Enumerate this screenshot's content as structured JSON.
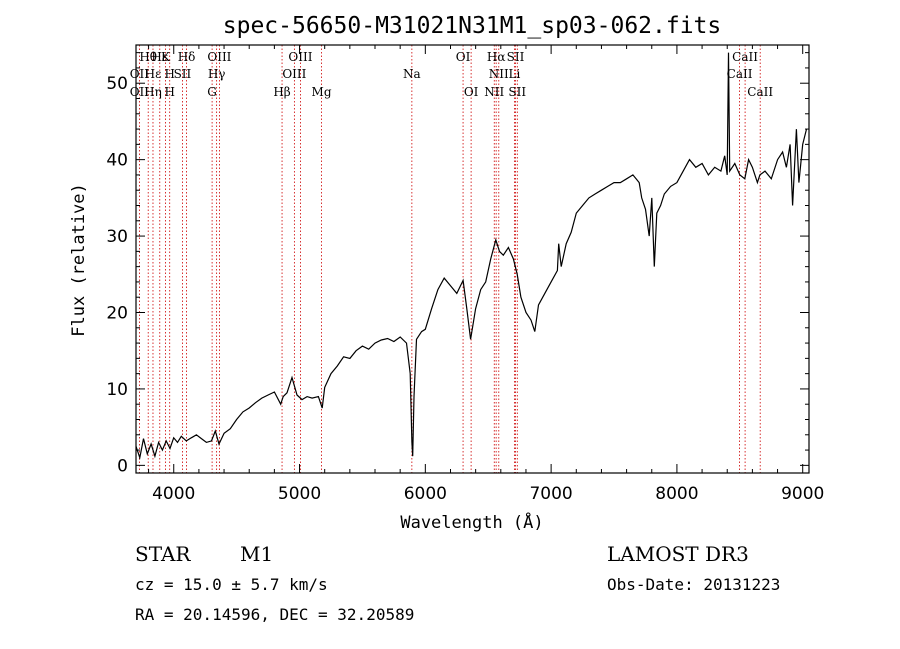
{
  "chart_data": {
    "type": "line",
    "title": "spec-56650-M31021N31M1_sp03-062.fits",
    "xlabel": "Wavelength (Å)",
    "ylabel": "Flux (relative)",
    "xlim": [
      3700,
      9050
    ],
    "ylim": [
      -1,
      55
    ],
    "xticks": [
      4000,
      5000,
      6000,
      7000,
      8000,
      9000
    ],
    "yticks": [
      0,
      10,
      20,
      30,
      40,
      50
    ],
    "line_color": "#000000",
    "marker_color": "#cc0000",
    "spectrum": [
      [
        3700,
        2.5
      ],
      [
        3730,
        1.0
      ],
      [
        3760,
        3.5
      ],
      [
        3790,
        1.5
      ],
      [
        3820,
        2.8
      ],
      [
        3850,
        1.2
      ],
      [
        3880,
        3.0
      ],
      [
        3910,
        2.0
      ],
      [
        3940,
        3.2
      ],
      [
        3970,
        2.2
      ],
      [
        4000,
        3.6
      ],
      [
        4030,
        3.0
      ],
      [
        4060,
        3.8
      ],
      [
        4100,
        3.2
      ],
      [
        4140,
        3.6
      ],
      [
        4180,
        4.0
      ],
      [
        4220,
        3.5
      ],
      [
        4260,
        3.0
      ],
      [
        4300,
        3.2
      ],
      [
        4330,
        4.5
      ],
      [
        4360,
        2.8
      ],
      [
        4400,
        4.2
      ],
      [
        4450,
        4.8
      ],
      [
        4500,
        6.0
      ],
      [
        4550,
        7.0
      ],
      [
        4600,
        7.5
      ],
      [
        4650,
        8.2
      ],
      [
        4700,
        8.8
      ],
      [
        4750,
        9.2
      ],
      [
        4800,
        9.6
      ],
      [
        4850,
        8.0
      ],
      [
        4870,
        9.0
      ],
      [
        4900,
        9.5
      ],
      [
        4940,
        11.5
      ],
      [
        4980,
        9.2
      ],
      [
        5020,
        8.6
      ],
      [
        5060,
        9.0
      ],
      [
        5100,
        8.8
      ],
      [
        5150,
        9.0
      ],
      [
        5180,
        7.5
      ],
      [
        5200,
        10.2
      ],
      [
        5250,
        12.0
      ],
      [
        5300,
        13.0
      ],
      [
        5350,
        14.2
      ],
      [
        5400,
        14.0
      ],
      [
        5450,
        15.0
      ],
      [
        5500,
        15.6
      ],
      [
        5550,
        15.2
      ],
      [
        5600,
        16.0
      ],
      [
        5650,
        16.4
      ],
      [
        5700,
        16.6
      ],
      [
        5750,
        16.2
      ],
      [
        5800,
        16.8
      ],
      [
        5850,
        16.0
      ],
      [
        5880,
        12.0
      ],
      [
        5893,
        3.0
      ],
      [
        5900,
        1.2
      ],
      [
        5910,
        9.0
      ],
      [
        5930,
        16.5
      ],
      [
        5970,
        17.5
      ],
      [
        6000,
        17.8
      ],
      [
        6050,
        20.5
      ],
      [
        6100,
        23.0
      ],
      [
        6150,
        24.5
      ],
      [
        6200,
        23.5
      ],
      [
        6250,
        22.5
      ],
      [
        6300,
        24.2
      ],
      [
        6330,
        20.5
      ],
      [
        6360,
        16.5
      ],
      [
        6400,
        20.5
      ],
      [
        6440,
        23.0
      ],
      [
        6480,
        24.0
      ],
      [
        6520,
        27.0
      ],
      [
        6560,
        29.5
      ],
      [
        6590,
        28.0
      ],
      [
        6620,
        27.5
      ],
      [
        6660,
        28.5
      ],
      [
        6700,
        27.0
      ],
      [
        6730,
        25.0
      ],
      [
        6760,
        22.0
      ],
      [
        6800,
        20.0
      ],
      [
        6840,
        19.0
      ],
      [
        6870,
        17.5
      ],
      [
        6900,
        21.0
      ],
      [
        6950,
        22.5
      ],
      [
        7000,
        24.0
      ],
      [
        7050,
        25.5
      ],
      [
        7060,
        29.0
      ],
      [
        7080,
        26.0
      ],
      [
        7120,
        29.0
      ],
      [
        7160,
        30.5
      ],
      [
        7200,
        33.0
      ],
      [
        7250,
        34.0
      ],
      [
        7300,
        35.0
      ],
      [
        7350,
        35.5
      ],
      [
        7400,
        36.0
      ],
      [
        7450,
        36.5
      ],
      [
        7500,
        37.0
      ],
      [
        7550,
        37.0
      ],
      [
        7600,
        37.5
      ],
      [
        7650,
        38.0
      ],
      [
        7700,
        37.0
      ],
      [
        7720,
        35.0
      ],
      [
        7750,
        33.5
      ],
      [
        7780,
        30.0
      ],
      [
        7800,
        35.0
      ],
      [
        7820,
        26.0
      ],
      [
        7840,
        33.0
      ],
      [
        7870,
        34.0
      ],
      [
        7900,
        35.5
      ],
      [
        7950,
        36.5
      ],
      [
        8000,
        37.0
      ],
      [
        8050,
        38.5
      ],
      [
        8100,
        40.0
      ],
      [
        8150,
        39.0
      ],
      [
        8200,
        39.5
      ],
      [
        8250,
        38.0
      ],
      [
        8300,
        39.0
      ],
      [
        8350,
        38.5
      ],
      [
        8380,
        40.5
      ],
      [
        8400,
        38.0
      ],
      [
        8410,
        54.0
      ],
      [
        8420,
        38.5
      ],
      [
        8460,
        39.5
      ],
      [
        8500,
        38.0
      ],
      [
        8540,
        37.5
      ],
      [
        8570,
        40.0
      ],
      [
        8600,
        39.0
      ],
      [
        8640,
        37.0
      ],
      [
        8660,
        38.0
      ],
      [
        8700,
        38.5
      ],
      [
        8750,
        37.5
      ],
      [
        8800,
        40.0
      ],
      [
        8840,
        41.0
      ],
      [
        8870,
        39.0
      ],
      [
        8900,
        42.0
      ],
      [
        8920,
        34.0
      ],
      [
        8950,
        44.0
      ],
      [
        8970,
        37.0
      ],
      [
        9000,
        42.0
      ],
      [
        9030,
        44.0
      ]
    ],
    "lines_row1": [
      {
        "w": 3797,
        "label": "Hθ"
      },
      {
        "w": 3889,
        "label": "Hε"
      },
      {
        "w": 3934,
        "label": "K"
      },
      {
        "w": 4102,
        "label": "Hδ"
      },
      {
        "w": 4363,
        "label": "OIII"
      },
      {
        "w": 5007,
        "label": "OIII"
      },
      {
        "w": 6300,
        "label": "OI"
      },
      {
        "w": 6563,
        "label": "Hα"
      },
      {
        "w": 6717,
        "label": "SII"
      },
      {
        "w": 8542,
        "label": "CaII"
      }
    ],
    "lines_row2": [
      {
        "w": 3727,
        "label": "OII"
      },
      {
        "w": 3835,
        "label": "Hε"
      },
      {
        "w": 3968,
        "label": "H"
      },
      {
        "w": 4069,
        "label": "SII"
      },
      {
        "w": 4341,
        "label": "Hγ"
      },
      {
        "w": 4959,
        "label": "OIII"
      },
      {
        "w": 5893,
        "label": "Na"
      },
      {
        "w": 6584,
        "label": "NII"
      },
      {
        "w": 6708,
        "label": "Li"
      },
      {
        "w": 8498,
        "label": "CaII"
      }
    ],
    "lines_row3": [
      {
        "w": 3727,
        "label": "OII"
      },
      {
        "w": 3835,
        "label": "Hη"
      },
      {
        "w": 3968,
        "label": "H"
      },
      {
        "w": 4305,
        "label": "G"
      },
      {
        "w": 4861,
        "label": "Hβ"
      },
      {
        "w": 5175,
        "label": "Mg"
      },
      {
        "w": 6364,
        "label": "OI"
      },
      {
        "w": 6548,
        "label": "NII"
      },
      {
        "w": 6731,
        "label": "SII"
      },
      {
        "w": 8662,
        "label": "CaII"
      }
    ]
  },
  "info": {
    "object_class": "STAR",
    "subclass": "M1",
    "survey": "LAMOST DR3",
    "redshift": "cz = 15.0 ± 5.7 km/s",
    "obs_date": "Obs-Date: 20131223",
    "coords": "RA =  20.14596, DEC =  32.20589"
  }
}
